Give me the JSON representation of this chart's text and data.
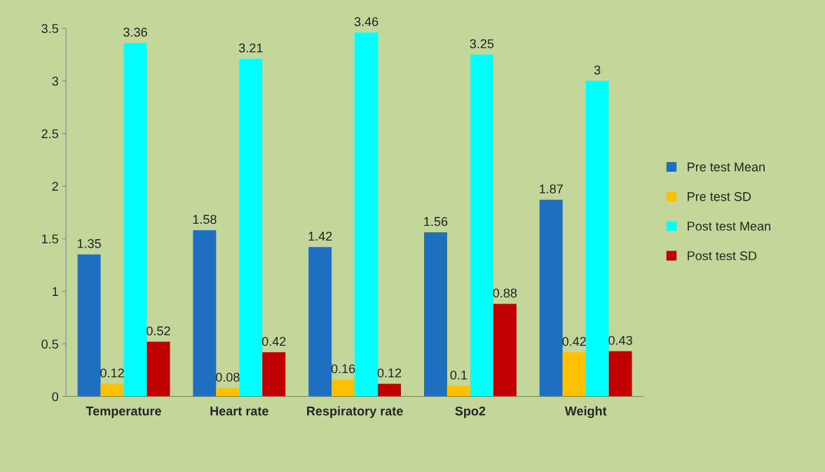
{
  "chart_data": {
    "type": "bar",
    "categories": [
      "Temperature",
      "Heart rate",
      "Respiratory rate",
      "Spo2",
      "Weight"
    ],
    "series": [
      {
        "name": "Pre test Mean",
        "color": "#1f6fc0",
        "values": [
          1.35,
          1.58,
          1.42,
          1.56,
          1.87
        ]
      },
      {
        "name": "Pre test SD",
        "color": "#ffc000",
        "values": [
          0.12,
          0.08,
          0.16,
          0.1,
          0.42
        ]
      },
      {
        "name": "Post test Mean",
        "color": "#00ffff",
        "values": [
          3.36,
          3.21,
          3.46,
          3.25,
          3
        ]
      },
      {
        "name": "Post test SD",
        "color": "#c00000",
        "values": [
          0.52,
          0.42,
          0.12,
          0.88,
          0.43
        ]
      }
    ],
    "ylim": [
      0,
      3.5
    ],
    "yticks": [
      0,
      0.5,
      1,
      1.5,
      2,
      2.5,
      3,
      3.5
    ],
    "data_labels": true,
    "grid": false,
    "legend": "right"
  }
}
